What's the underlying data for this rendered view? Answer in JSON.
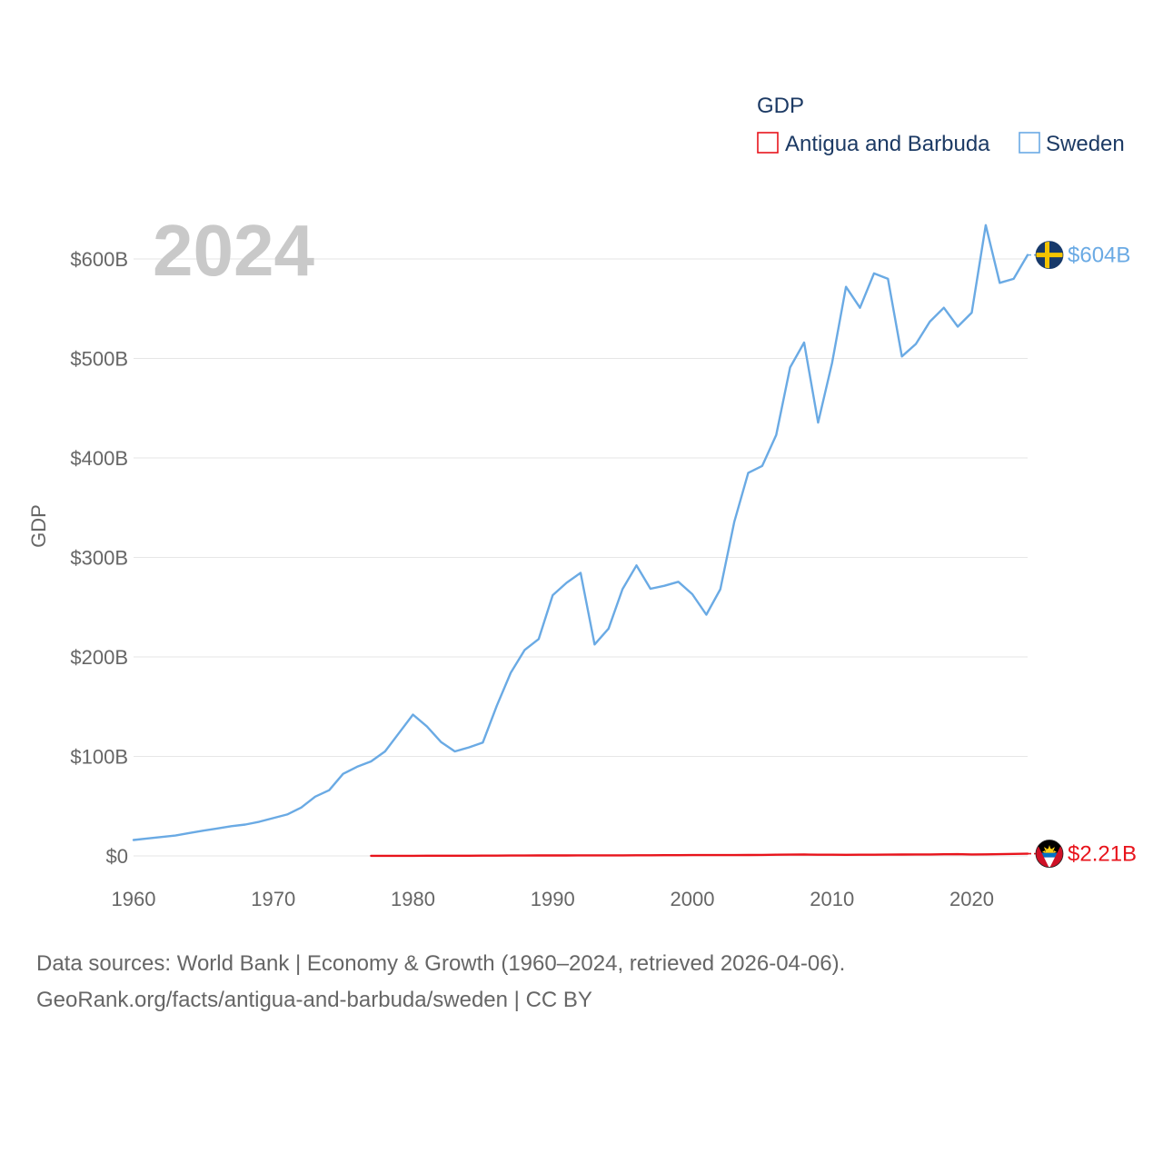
{
  "legend": {
    "title": "GDP"
  },
  "year_watermark": "2024",
  "footer": {
    "line1": "Data sources: World Bank | Economy & Growth (1960–2024, retrieved 2026-04-06).",
    "line2": "GeoRank.org/facts/antigua-and-barbuda/sweden | CC BY"
  },
  "chart_data": {
    "type": "line",
    "title": "",
    "xlabel": "",
    "ylabel": "GDP",
    "xlim": [
      1960,
      2024
    ],
    "ylim": [
      0,
      600
    ],
    "grid": "horizontal",
    "legend_position": "top-right",
    "x_ticks": [
      {
        "value": 1960,
        "label": "1960"
      },
      {
        "value": 1970,
        "label": "1970"
      },
      {
        "value": 1980,
        "label": "1980"
      },
      {
        "value": 1990,
        "label": "1990"
      },
      {
        "value": 2000,
        "label": "2000"
      },
      {
        "value": 2010,
        "label": "2010"
      },
      {
        "value": 2020,
        "label": "2020"
      }
    ],
    "y_ticks": [
      {
        "value": 0,
        "label": "$0"
      },
      {
        "value": 100,
        "label": "$100B"
      },
      {
        "value": 200,
        "label": "$200B"
      },
      {
        "value": 300,
        "label": "$300B"
      },
      {
        "value": 400,
        "label": "$400B"
      },
      {
        "value": 500,
        "label": "$500B"
      },
      {
        "value": 600,
        "label": "$600B"
      }
    ],
    "series": [
      {
        "name": "Antigua and Barbuda",
        "color": "#e8141c",
        "flag_icon": "antigua-and-barbuda-flag-icon",
        "end_label": "$2.21B",
        "start_year": 1977,
        "values": [
          0.08,
          0.09,
          0.11,
          0.13,
          0.15,
          0.16,
          0.18,
          0.21,
          0.24,
          0.29,
          0.34,
          0.4,
          0.45,
          0.48,
          0.5,
          0.52,
          0.54,
          0.59,
          0.58,
          0.63,
          0.68,
          0.73,
          0.77,
          0.83,
          0.8,
          0.82,
          0.86,
          0.92,
          1.02,
          1.16,
          1.31,
          1.37,
          1.23,
          1.15,
          1.14,
          1.2,
          1.18,
          1.25,
          1.34,
          1.44,
          1.47,
          1.61,
          1.69,
          1.44,
          1.56,
          1.78,
          2.01,
          2.21
        ]
      },
      {
        "name": "Sweden",
        "color": "#6aaae4",
        "flag_icon": "sweden-flag-icon",
        "end_label": "$604B",
        "start_year": 1960,
        "values": [
          16.0,
          17.5,
          19.0,
          20.5,
          23.0,
          25.4,
          27.6,
          29.9,
          31.5,
          34.3,
          38.0,
          41.6,
          48.6,
          59.5,
          66.0,
          82.5,
          89.6,
          95.0,
          105.0,
          123.5,
          142.0,
          130.0,
          114.5,
          105.0,
          109.0,
          114.0,
          151.0,
          184.0,
          207.0,
          218.0,
          262.0,
          274.5,
          284.5,
          212.5,
          228.5,
          268.0,
          292.0,
          268.5,
          271.5,
          275.5,
          263.0,
          242.5,
          268.0,
          335.5,
          385.0,
          392.0,
          423.0,
          491.0,
          516.0,
          435.5,
          495.5,
          572.0,
          551.0,
          585.5,
          580.0,
          502.0,
          514.5,
          537.0,
          551.0,
          532.0,
          546.0,
          634.0,
          576.0,
          580.0,
          604.0
        ]
      }
    ]
  }
}
